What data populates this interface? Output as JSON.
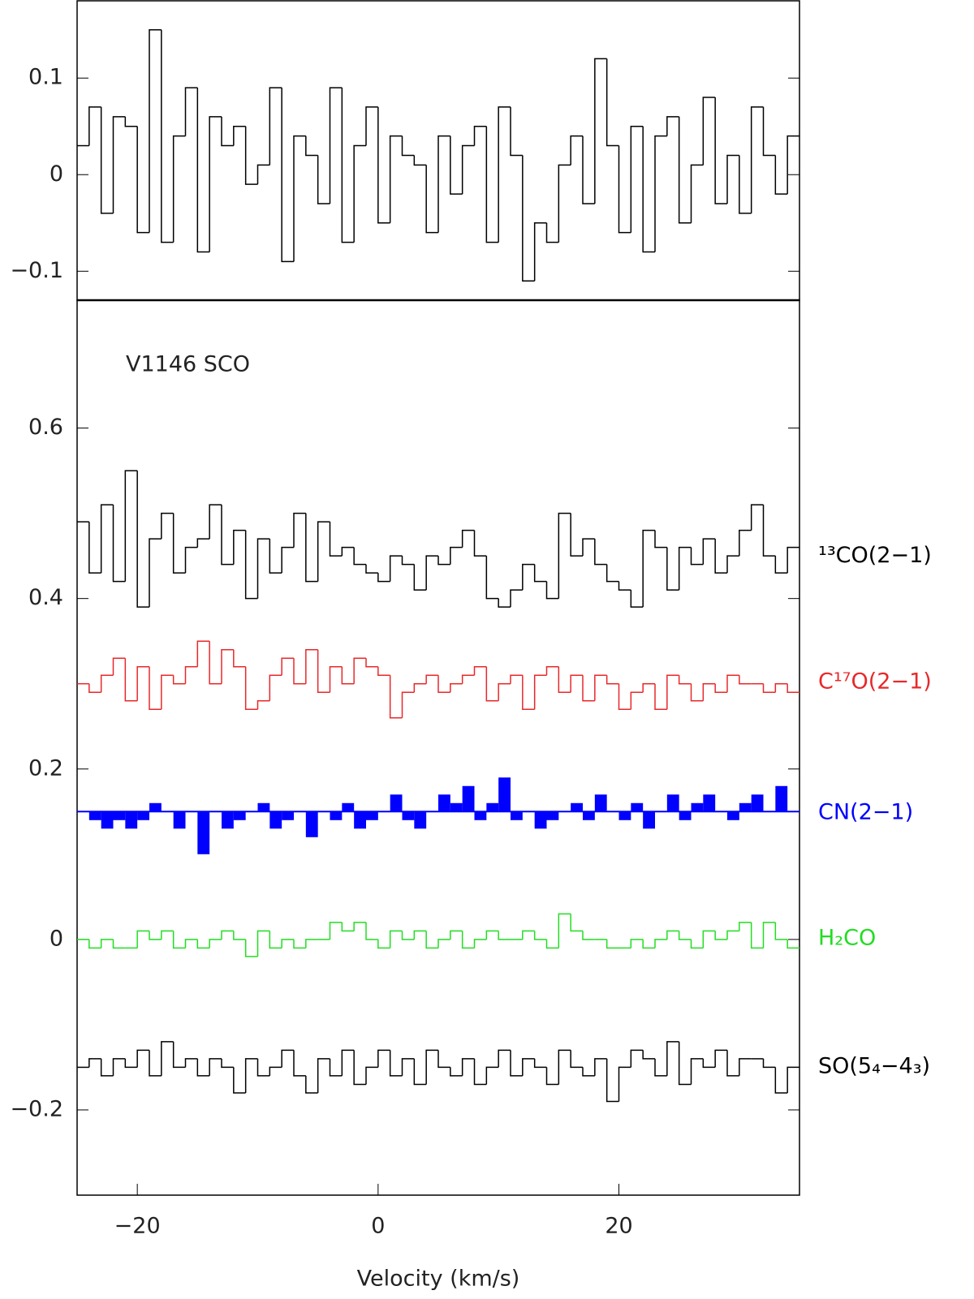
{
  "chart_data": [
    {
      "type": "step",
      "x": [
        -24.5,
        -23.5,
        -22.5,
        -21.5,
        -20.5,
        -19.5,
        -18.5,
        -17.5,
        -16.5,
        -15.5,
        -14.5,
        -13.5,
        -12.5,
        -11.5,
        -10.5,
        -9.5,
        -8.5,
        -7.5,
        -6.5,
        -5.5,
        -4.5,
        -3.5,
        -2.5,
        -1.5,
        -0.5,
        0.5,
        1.5,
        2.5,
        3.5,
        4.5,
        5.5,
        6.5,
        7.5,
        8.5,
        9.5,
        10.5,
        11.5,
        12.5,
        13.5,
        14.5,
        15.5,
        16.5,
        17.5,
        18.5,
        19.5,
        20.5,
        21.5,
        22.5,
        23.5,
        24.5,
        25.5,
        26.5,
        27.5,
        28.5,
        29.5,
        30.5,
        31.5,
        32.5,
        33.5,
        34.5
      ],
      "values": [
        0.03,
        0.07,
        -0.04,
        0.06,
        0.05,
        -0.06,
        0.15,
        -0.07,
        0.04,
        0.09,
        -0.08,
        0.06,
        0.03,
        0.05,
        -0.01,
        0.01,
        0.09,
        -0.09,
        0.04,
        0.02,
        -0.03,
        0.09,
        -0.07,
        0.03,
        0.07,
        -0.05,
        0.04,
        0.02,
        0.01,
        -0.06,
        0.04,
        -0.02,
        0.03,
        0.05,
        -0.07,
        0.07,
        0.02,
        -0.11,
        -0.05,
        -0.07,
        0.01,
        0.04,
        -0.03,
        0.12,
        0.03,
        -0.06,
        0.05,
        -0.08,
        0.04,
        0.06,
        -0.05,
        0.01,
        0.08,
        -0.03,
        0.02,
        -0.04,
        0.07,
        0.02,
        -0.02,
        0.04
      ],
      "color": "#000000",
      "xlim": [
        -25,
        35
      ],
      "ylim": [
        -0.13,
        0.18
      ],
      "yticks": [
        {
          "value": -0.1,
          "label": "−0.1"
        },
        0,
        0.1
      ]
    },
    {
      "type": "step",
      "annotation": "V1146 SCO",
      "xlabel": "Velocity (km/s)",
      "x": [
        -24.5,
        -23.5,
        -22.5,
        -21.5,
        -20.5,
        -19.5,
        -18.5,
        -17.5,
        -16.5,
        -15.5,
        -14.5,
        -13.5,
        -12.5,
        -11.5,
        -10.5,
        -9.5,
        -8.5,
        -7.5,
        -6.5,
        -5.5,
        -4.5,
        -3.5,
        -2.5,
        -1.5,
        -0.5,
        0.5,
        1.5,
        2.5,
        3.5,
        4.5,
        5.5,
        6.5,
        7.5,
        8.5,
        9.5,
        10.5,
        11.5,
        12.5,
        13.5,
        14.5,
        15.5,
        16.5,
        17.5,
        18.5,
        19.5,
        20.5,
        21.5,
        22.5,
        23.5,
        24.5,
        25.5,
        26.5,
        27.5,
        28.5,
        29.5,
        30.5,
        31.5,
        32.5,
        33.5,
        34.5
      ],
      "xlim": [
        -25,
        35
      ],
      "xticks": [
        {
          "value": -20,
          "label": "−20"
        },
        0,
        20
      ],
      "ylim": [
        -0.3,
        0.75
      ],
      "yticks": [
        {
          "value": -0.2,
          "label": "−0.2"
        },
        0,
        0.2,
        0.4,
        0.6
      ],
      "series": [
        {
          "name": "¹³CO(2−1)",
          "color": "#000000",
          "values": [
            0.49,
            0.43,
            0.51,
            0.42,
            0.55,
            0.39,
            0.47,
            0.5,
            0.43,
            0.46,
            0.47,
            0.51,
            0.44,
            0.48,
            0.4,
            0.47,
            0.43,
            0.46,
            0.5,
            0.42,
            0.49,
            0.45,
            0.46,
            0.44,
            0.43,
            0.42,
            0.45,
            0.44,
            0.41,
            0.45,
            0.44,
            0.46,
            0.48,
            0.45,
            0.4,
            0.39,
            0.41,
            0.44,
            0.42,
            0.4,
            0.5,
            0.45,
            0.47,
            0.44,
            0.42,
            0.41,
            0.39,
            0.48,
            0.46,
            0.41,
            0.46,
            0.44,
            0.47,
            0.43,
            0.45,
            0.48,
            0.51,
            0.45,
            0.43,
            0.46
          ]
        },
        {
          "name": "C¹⁷O(2−1)",
          "color": "#e8282a",
          "values": [
            0.3,
            0.29,
            0.31,
            0.33,
            0.28,
            0.32,
            0.27,
            0.31,
            0.3,
            0.32,
            0.35,
            0.3,
            0.34,
            0.32,
            0.27,
            0.28,
            0.31,
            0.33,
            0.3,
            0.34,
            0.29,
            0.32,
            0.3,
            0.33,
            0.32,
            0.31,
            0.26,
            0.29,
            0.3,
            0.31,
            0.29,
            0.3,
            0.31,
            0.32,
            0.28,
            0.3,
            0.31,
            0.27,
            0.31,
            0.32,
            0.29,
            0.31,
            0.28,
            0.31,
            0.3,
            0.27,
            0.29,
            0.3,
            0.27,
            0.31,
            0.3,
            0.28,
            0.3,
            0.29,
            0.31,
            0.3,
            0.3,
            0.29,
            0.3,
            0.29
          ]
        },
        {
          "name": "CN(2−1)",
          "color": "#0000ff",
          "fill": true,
          "baseline": 0.15,
          "values": [
            0.15,
            0.14,
            0.13,
            0.14,
            0.13,
            0.14,
            0.16,
            0.15,
            0.13,
            0.15,
            0.1,
            0.15,
            0.13,
            0.14,
            0.15,
            0.16,
            0.13,
            0.14,
            0.15,
            0.12,
            0.15,
            0.14,
            0.16,
            0.13,
            0.14,
            0.15,
            0.17,
            0.14,
            0.13,
            0.15,
            0.17,
            0.16,
            0.18,
            0.14,
            0.16,
            0.19,
            0.14,
            0.15,
            0.13,
            0.14,
            0.15,
            0.16,
            0.14,
            0.17,
            0.15,
            0.14,
            0.16,
            0.13,
            0.15,
            0.17,
            0.14,
            0.16,
            0.17,
            0.15,
            0.14,
            0.16,
            0.17,
            0.15,
            0.18,
            0.15
          ]
        },
        {
          "name": "H₂CO",
          "color": "#22dd22",
          "values": [
            0.0,
            -0.01,
            0.0,
            -0.01,
            -0.01,
            0.01,
            0.0,
            0.01,
            -0.01,
            0.0,
            -0.01,
            0.0,
            0.01,
            0.0,
            -0.02,
            0.01,
            -0.01,
            0.0,
            -0.01,
            0.0,
            0.0,
            0.02,
            0.01,
            0.02,
            0.0,
            -0.01,
            0.01,
            0.0,
            0.01,
            -0.01,
            0.0,
            0.01,
            -0.01,
            0.0,
            0.01,
            0.0,
            0.0,
            0.01,
            0.0,
            -0.01,
            0.03,
            0.01,
            0.0,
            0.0,
            -0.01,
            -0.01,
            0.0,
            -0.01,
            0.0,
            0.01,
            0.0,
            -0.01,
            0.01,
            0.0,
            0.01,
            0.02,
            -0.01,
            0.02,
            0.0,
            -0.01
          ]
        },
        {
          "name": "SO(5₄−4₃)",
          "color": "#000000",
          "values": [
            -0.15,
            -0.14,
            -0.16,
            -0.14,
            -0.15,
            -0.13,
            -0.16,
            -0.12,
            -0.15,
            -0.14,
            -0.16,
            -0.14,
            -0.15,
            -0.18,
            -0.14,
            -0.16,
            -0.15,
            -0.13,
            -0.16,
            -0.18,
            -0.14,
            -0.16,
            -0.13,
            -0.17,
            -0.15,
            -0.13,
            -0.16,
            -0.14,
            -0.17,
            -0.13,
            -0.15,
            -0.16,
            -0.14,
            -0.17,
            -0.15,
            -0.13,
            -0.16,
            -0.14,
            -0.15,
            -0.17,
            -0.13,
            -0.15,
            -0.16,
            -0.14,
            -0.19,
            -0.15,
            -0.13,
            -0.14,
            -0.16,
            -0.12,
            -0.17,
            -0.14,
            -0.15,
            -0.13,
            -0.16,
            -0.14,
            -0.14,
            -0.15,
            -0.18,
            -0.15
          ]
        }
      ]
    }
  ]
}
